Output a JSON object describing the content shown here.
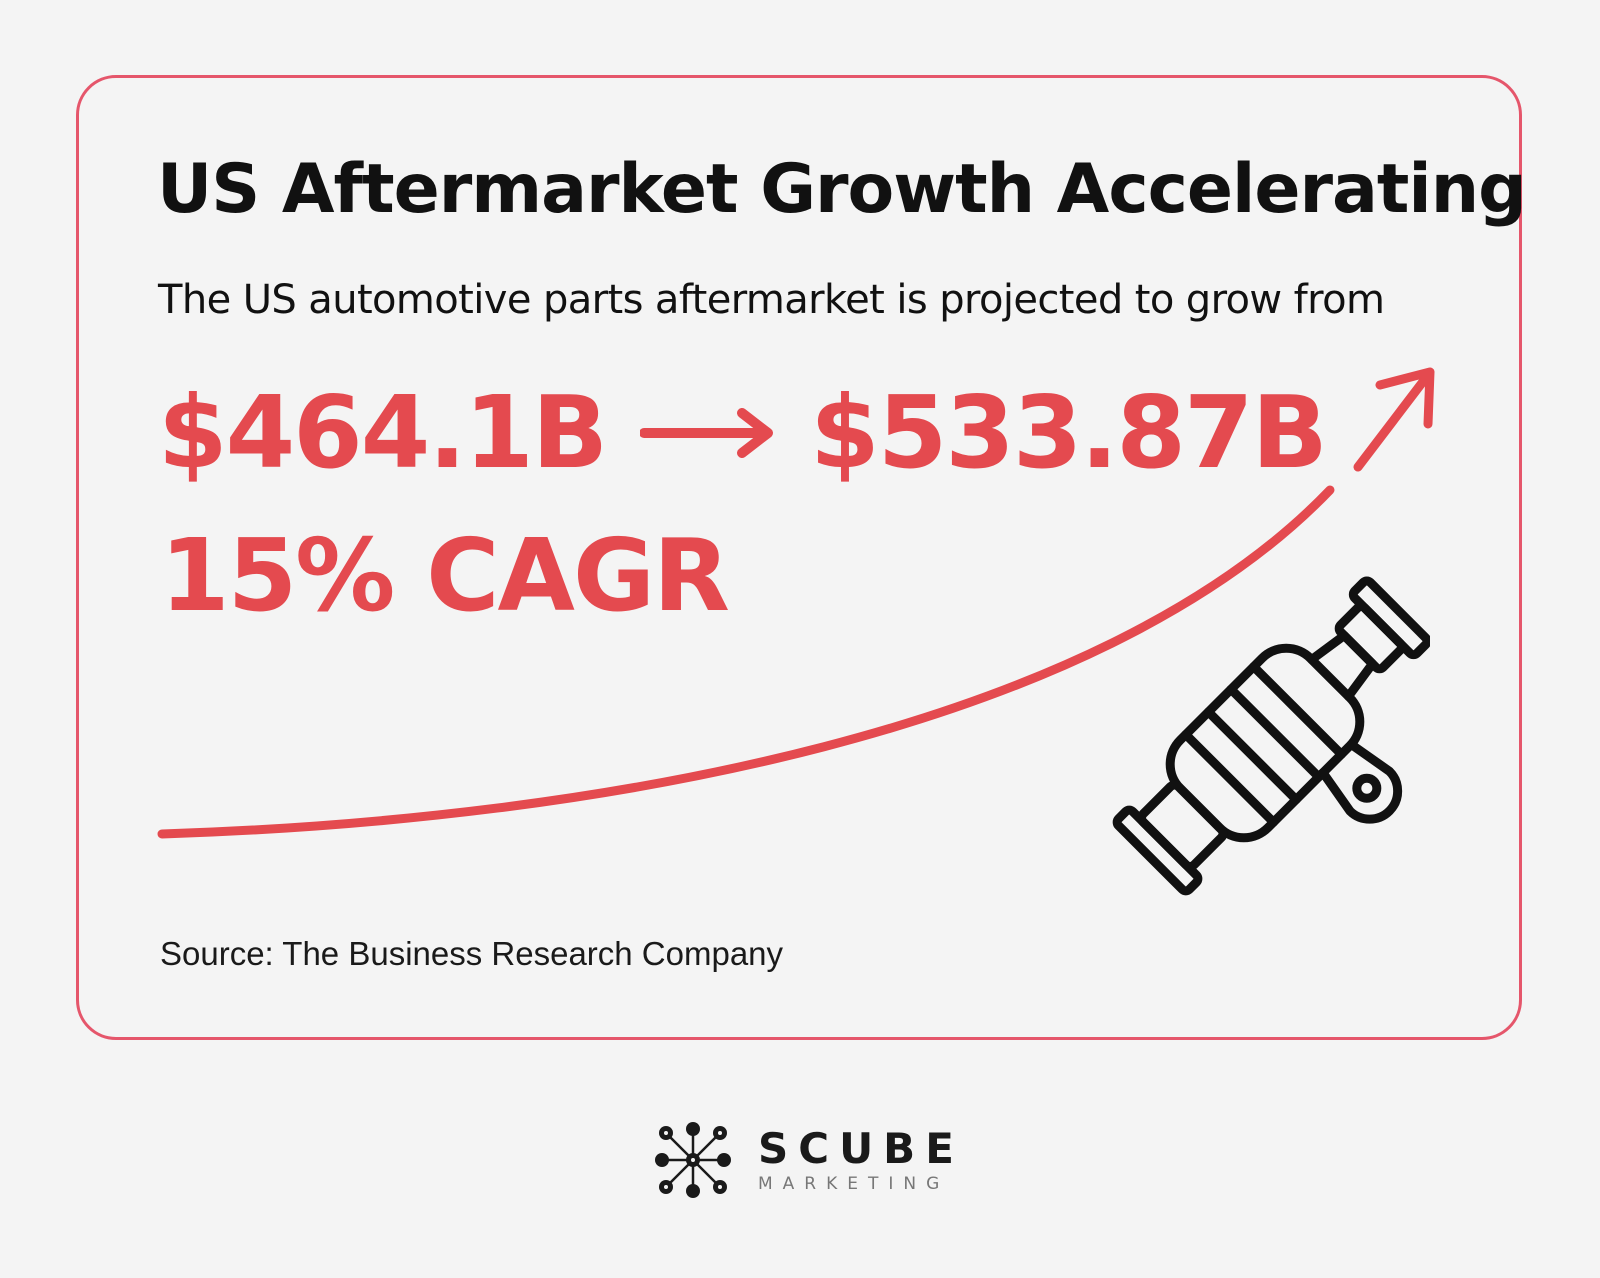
{
  "headline": "US Aftermarket Growth Accelerating",
  "subheadline": "The US automotive parts aftermarket is projected to grow from",
  "value_from": "$464.1B",
  "value_to": "$533.87B",
  "cagr": "15% CAGR",
  "source": "Source: The Business Research Company",
  "icons": {
    "transition_arrow": "arrow-right-icon",
    "trend": "growth-curve-arrow-icon",
    "part": "automotive-part-icon",
    "logo": "scube-logo-mark"
  },
  "colors": {
    "accent": "#e44a4f",
    "card_border": "#e5566b",
    "background": "#f4f4f4",
    "text": "#111111"
  },
  "brand": {
    "name": "SCUBE",
    "tagline": "MARKETING"
  }
}
